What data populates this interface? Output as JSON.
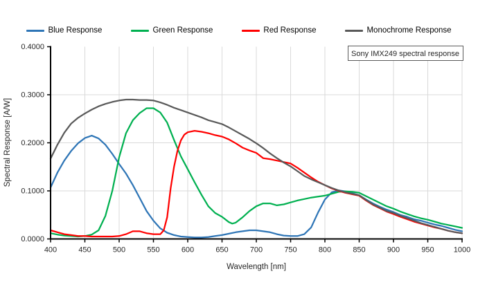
{
  "annotation_box": {
    "text": "Sony IMX249 spectral response"
  },
  "chart_data": {
    "type": "line",
    "title": "",
    "xlabel": "Wavelength [nm]",
    "ylabel": "Spectral Response [A/W]",
    "xlim": [
      400,
      1000
    ],
    "ylim": [
      0,
      0.4
    ],
    "grid": true,
    "legend_position": "top",
    "annotation": "Sony IMX249 spectral response",
    "x_tick_labels": [
      "400",
      "450",
      "500",
      "550",
      "600",
      "650",
      "700",
      "750",
      "800",
      "850",
      "900",
      "950",
      "1000"
    ],
    "x_tick_values": [
      400,
      450,
      500,
      550,
      600,
      650,
      700,
      750,
      800,
      850,
      900,
      950,
      1000
    ],
    "y_tick_labels": [
      "0.0000",
      "0.1000",
      "0.2000",
      "0.3000",
      "0.4000"
    ],
    "y_tick_values": [
      0,
      0.1,
      0.2,
      0.3,
      0.4
    ],
    "gridline_color": "#d9d9d9",
    "axis_color": "#000000",
    "series": [
      {
        "name": "Blue Response",
        "color": "#2e75b6",
        "points": [
          [
            400,
            0.107
          ],
          [
            410,
            0.138
          ],
          [
            420,
            0.163
          ],
          [
            430,
            0.183
          ],
          [
            440,
            0.199
          ],
          [
            450,
            0.21
          ],
          [
            460,
            0.215
          ],
          [
            470,
            0.209
          ],
          [
            480,
            0.196
          ],
          [
            490,
            0.177
          ],
          [
            500,
            0.156
          ],
          [
            510,
            0.136
          ],
          [
            520,
            0.112
          ],
          [
            530,
            0.085
          ],
          [
            540,
            0.058
          ],
          [
            550,
            0.038
          ],
          [
            560,
            0.022
          ],
          [
            570,
            0.013
          ],
          [
            580,
            0.008
          ],
          [
            590,
            0.005
          ],
          [
            600,
            0.004
          ],
          [
            610,
            0.003
          ],
          [
            620,
            0.003
          ],
          [
            630,
            0.004
          ],
          [
            640,
            0.006
          ],
          [
            650,
            0.008
          ],
          [
            660,
            0.011
          ],
          [
            670,
            0.014
          ],
          [
            680,
            0.016
          ],
          [
            690,
            0.018
          ],
          [
            700,
            0.018
          ],
          [
            710,
            0.016
          ],
          [
            720,
            0.014
          ],
          [
            730,
            0.01
          ],
          [
            740,
            0.007
          ],
          [
            750,
            0.006
          ],
          [
            760,
            0.006
          ],
          [
            770,
            0.01
          ],
          [
            780,
            0.024
          ],
          [
            790,
            0.055
          ],
          [
            800,
            0.082
          ],
          [
            810,
            0.097
          ],
          [
            820,
            0.101
          ],
          [
            830,
            0.099
          ],
          [
            840,
            0.095
          ],
          [
            850,
            0.091
          ],
          [
            860,
            0.082
          ],
          [
            870,
            0.074
          ],
          [
            880,
            0.067
          ],
          [
            890,
            0.061
          ],
          [
            900,
            0.056
          ],
          [
            910,
            0.05
          ],
          [
            920,
            0.046
          ],
          [
            930,
            0.041
          ],
          [
            940,
            0.038
          ],
          [
            950,
            0.034
          ],
          [
            960,
            0.03
          ],
          [
            970,
            0.027
          ],
          [
            980,
            0.023
          ],
          [
            990,
            0.019
          ],
          [
            1000,
            0.016
          ]
        ]
      },
      {
        "name": "Green Response",
        "color": "#00b050",
        "points": [
          [
            400,
            0.012
          ],
          [
            410,
            0.009
          ],
          [
            420,
            0.007
          ],
          [
            430,
            0.006
          ],
          [
            440,
            0.005
          ],
          [
            450,
            0.006
          ],
          [
            460,
            0.009
          ],
          [
            470,
            0.018
          ],
          [
            480,
            0.048
          ],
          [
            490,
            0.1
          ],
          [
            500,
            0.17
          ],
          [
            510,
            0.22
          ],
          [
            520,
            0.247
          ],
          [
            530,
            0.262
          ],
          [
            540,
            0.272
          ],
          [
            550,
            0.272
          ],
          [
            560,
            0.263
          ],
          [
            570,
            0.242
          ],
          [
            580,
            0.206
          ],
          [
            590,
            0.172
          ],
          [
            600,
            0.145
          ],
          [
            610,
            0.118
          ],
          [
            620,
            0.092
          ],
          [
            630,
            0.068
          ],
          [
            640,
            0.054
          ],
          [
            650,
            0.046
          ],
          [
            660,
            0.035
          ],
          [
            665,
            0.032
          ],
          [
            670,
            0.034
          ],
          [
            680,
            0.045
          ],
          [
            690,
            0.058
          ],
          [
            700,
            0.068
          ],
          [
            710,
            0.074
          ],
          [
            720,
            0.074
          ],
          [
            730,
            0.07
          ],
          [
            740,
            0.072
          ],
          [
            750,
            0.076
          ],
          [
            760,
            0.08
          ],
          [
            770,
            0.083
          ],
          [
            780,
            0.086
          ],
          [
            790,
            0.088
          ],
          [
            800,
            0.09
          ],
          [
            810,
            0.094
          ],
          [
            820,
            0.098
          ],
          [
            830,
            0.099
          ],
          [
            840,
            0.098
          ],
          [
            850,
            0.096
          ],
          [
            860,
            0.089
          ],
          [
            870,
            0.082
          ],
          [
            880,
            0.075
          ],
          [
            890,
            0.068
          ],
          [
            900,
            0.063
          ],
          [
            910,
            0.057
          ],
          [
            920,
            0.052
          ],
          [
            930,
            0.047
          ],
          [
            940,
            0.043
          ],
          [
            950,
            0.04
          ],
          [
            960,
            0.036
          ],
          [
            970,
            0.032
          ],
          [
            980,
            0.029
          ],
          [
            990,
            0.026
          ],
          [
            1000,
            0.023
          ]
        ]
      },
      {
        "name": "Red Response",
        "color": "#ff0000",
        "points": [
          [
            400,
            0.018
          ],
          [
            410,
            0.014
          ],
          [
            420,
            0.01
          ],
          [
            430,
            0.008
          ],
          [
            440,
            0.006
          ],
          [
            450,
            0.006
          ],
          [
            460,
            0.005
          ],
          [
            470,
            0.005
          ],
          [
            480,
            0.005
          ],
          [
            490,
            0.005
          ],
          [
            500,
            0.006
          ],
          [
            510,
            0.01
          ],
          [
            520,
            0.016
          ],
          [
            530,
            0.016
          ],
          [
            540,
            0.012
          ],
          [
            550,
            0.01
          ],
          [
            560,
            0.01
          ],
          [
            565,
            0.018
          ],
          [
            570,
            0.045
          ],
          [
            575,
            0.105
          ],
          [
            580,
            0.15
          ],
          [
            585,
            0.183
          ],
          [
            590,
            0.205
          ],
          [
            595,
            0.217
          ],
          [
            600,
            0.222
          ],
          [
            610,
            0.225
          ],
          [
            620,
            0.223
          ],
          [
            630,
            0.22
          ],
          [
            640,
            0.216
          ],
          [
            650,
            0.213
          ],
          [
            660,
            0.207
          ],
          [
            670,
            0.199
          ],
          [
            680,
            0.19
          ],
          [
            690,
            0.184
          ],
          [
            700,
            0.179
          ],
          [
            710,
            0.168
          ],
          [
            720,
            0.166
          ],
          [
            730,
            0.163
          ],
          [
            740,
            0.16
          ],
          [
            750,
            0.157
          ],
          [
            760,
            0.148
          ],
          [
            770,
            0.138
          ],
          [
            780,
            0.128
          ],
          [
            790,
            0.119
          ],
          [
            800,
            0.112
          ],
          [
            810,
            0.105
          ],
          [
            820,
            0.1
          ],
          [
            830,
            0.096
          ],
          [
            840,
            0.093
          ],
          [
            850,
            0.09
          ],
          [
            860,
            0.08
          ],
          [
            870,
            0.071
          ],
          [
            880,
            0.064
          ],
          [
            890,
            0.057
          ],
          [
            900,
            0.052
          ],
          [
            910,
            0.046
          ],
          [
            920,
            0.041
          ],
          [
            930,
            0.036
          ],
          [
            940,
            0.032
          ],
          [
            950,
            0.028
          ],
          [
            960,
            0.024
          ],
          [
            970,
            0.021
          ],
          [
            980,
            0.017
          ],
          [
            990,
            0.014
          ],
          [
            1000,
            0.012
          ]
        ]
      },
      {
        "name": "Monochrome Response",
        "color": "#595959",
        "points": [
          [
            400,
            0.167
          ],
          [
            410,
            0.196
          ],
          [
            420,
            0.221
          ],
          [
            430,
            0.24
          ],
          [
            440,
            0.252
          ],
          [
            450,
            0.261
          ],
          [
            460,
            0.269
          ],
          [
            470,
            0.276
          ],
          [
            480,
            0.281
          ],
          [
            490,
            0.285
          ],
          [
            500,
            0.288
          ],
          [
            510,
            0.29
          ],
          [
            520,
            0.29
          ],
          [
            530,
            0.289
          ],
          [
            540,
            0.289
          ],
          [
            550,
            0.288
          ],
          [
            560,
            0.284
          ],
          [
            570,
            0.279
          ],
          [
            580,
            0.273
          ],
          [
            590,
            0.268
          ],
          [
            600,
            0.263
          ],
          [
            610,
            0.258
          ],
          [
            620,
            0.253
          ],
          [
            630,
            0.247
          ],
          [
            640,
            0.243
          ],
          [
            650,
            0.239
          ],
          [
            660,
            0.232
          ],
          [
            670,
            0.224
          ],
          [
            680,
            0.216
          ],
          [
            690,
            0.208
          ],
          [
            700,
            0.199
          ],
          [
            710,
            0.189
          ],
          [
            720,
            0.178
          ],
          [
            730,
            0.168
          ],
          [
            740,
            0.159
          ],
          [
            750,
            0.151
          ],
          [
            760,
            0.141
          ],
          [
            770,
            0.131
          ],
          [
            780,
            0.124
          ],
          [
            790,
            0.118
          ],
          [
            800,
            0.112
          ],
          [
            810,
            0.106
          ],
          [
            820,
            0.101
          ],
          [
            830,
            0.097
          ],
          [
            840,
            0.094
          ],
          [
            850,
            0.091
          ],
          [
            860,
            0.081
          ],
          [
            870,
            0.072
          ],
          [
            880,
            0.065
          ],
          [
            890,
            0.058
          ],
          [
            900,
            0.054
          ],
          [
            910,
            0.048
          ],
          [
            920,
            0.043
          ],
          [
            930,
            0.038
          ],
          [
            940,
            0.033
          ],
          [
            950,
            0.029
          ],
          [
            960,
            0.025
          ],
          [
            970,
            0.021
          ],
          [
            980,
            0.017
          ],
          [
            990,
            0.014
          ],
          [
            1000,
            0.012
          ]
        ]
      }
    ]
  }
}
